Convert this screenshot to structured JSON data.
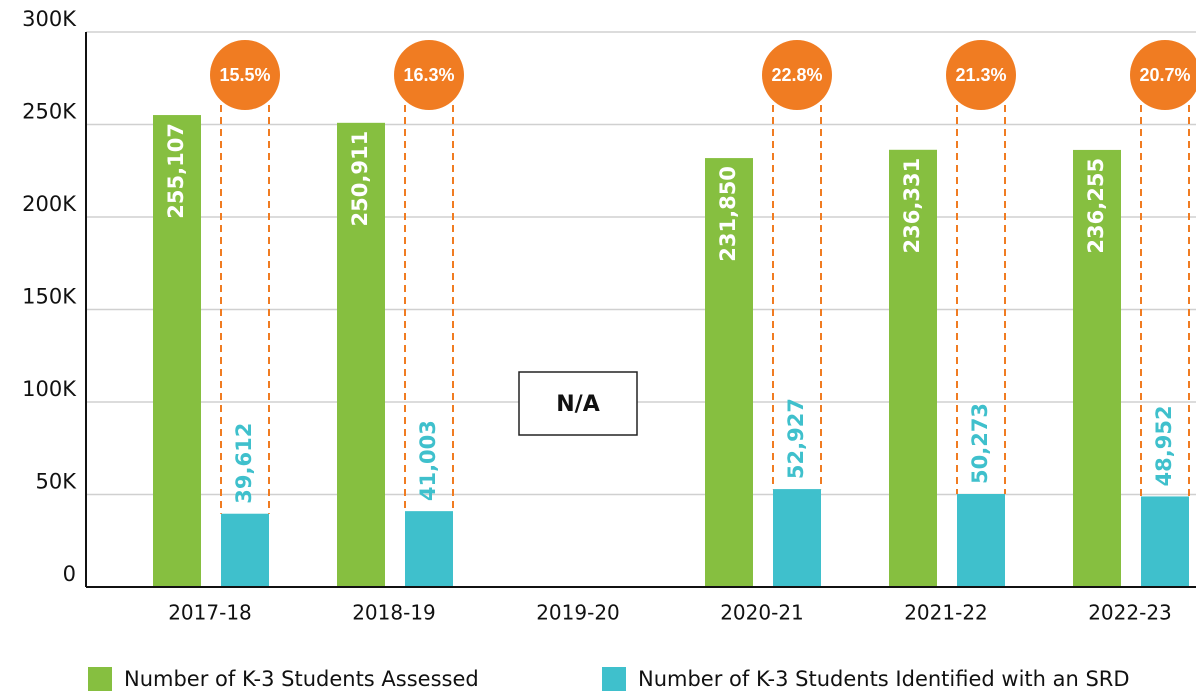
{
  "chart_data": {
    "type": "bar",
    "categories": [
      "2017-18",
      "2018-19",
      "2019-20",
      "2020-21",
      "2021-22",
      "2022-23"
    ],
    "series": [
      {
        "name": "Number of K-3 Students Assessed",
        "color": "#86bf40",
        "values": [
          255107,
          250911,
          null,
          231850,
          236331,
          236255
        ],
        "value_labels": [
          "255,107",
          "250,911",
          null,
          "231,850",
          "236,331",
          "236,255"
        ]
      },
      {
        "name": "Number of K-3 Students Identified with an SRD",
        "color": "#3fc0cc",
        "values": [
          39612,
          41003,
          null,
          52927,
          50273,
          48952
        ],
        "value_labels": [
          "39,612",
          "41,003",
          null,
          "52,927",
          "50,273",
          "48,952"
        ]
      }
    ],
    "percent": {
      "color": "#f07c22",
      "values": [
        15.5,
        16.3,
        null,
        22.8,
        21.3,
        20.7
      ],
      "value_labels": [
        "15.5%",
        "16.3%",
        null,
        "22.8%",
        "21.3%",
        "20.7%"
      ]
    },
    "annotation": "N/A",
    "ylim": [
      0,
      300000
    ],
    "yticks": [
      0,
      {
        "value": 50000,
        "label": "50K"
      },
      {
        "value": 100000,
        "label": "100K"
      },
      {
        "value": 150000,
        "label": "150K"
      },
      {
        "value": 200000,
        "label": "200K"
      },
      {
        "value": 250000,
        "label": "250K"
      },
      {
        "value": 300000,
        "label": "300K"
      }
    ],
    "grid": true
  }
}
